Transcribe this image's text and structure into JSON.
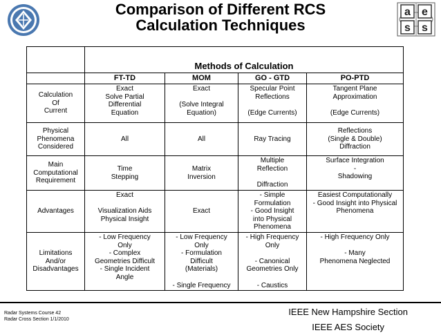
{
  "title_line1": "Comparison of Different RCS",
  "title_line2": "Calculation Techniques",
  "table": {
    "methods_header": "Methods of Calculation",
    "columns": [
      "FT-TD",
      "MOM",
      "GO - GTD",
      "PO-PTD"
    ],
    "rows": [
      {
        "label": "Calculation\nOf\nCurrent",
        "cells": [
          "Exact\nSolve Partial\nDifferential\nEquation",
          "Exact\n\n(Solve Integral\nEquation)",
          "Specular Point\nReflections\n\n(Edge Currents)",
          "Tangent Plane\nApproximation\n\n(Edge Currents)"
        ]
      },
      {
        "label": "Physical\nPhenomena\nConsidered",
        "cells": [
          "All",
          "All",
          "Ray Tracing",
          "Reflections\n(Single & Double)\nDiffraction"
        ]
      },
      {
        "label": "Main\nComputational\nRequirement",
        "cells": [
          "Time\nStepping",
          "Matrix\nInversion",
          "Multiple\nReflection\n\nDiffraction",
          "Surface Integration\n-\nShadowing"
        ]
      },
      {
        "label": "Advantages",
        "cells": [
          "Exact\n\nVisualization Aids\nPhysical Insight",
          "Exact",
          "- Simple\nFormulation\n- Good Insight\ninto Physical\nPhenomena",
          "Easiest Computationally\n- Good Insight into Physical\nPhenomena"
        ]
      },
      {
        "label": "Limitations\nAnd/or\nDisadvantages",
        "cells": [
          "- Low Frequency\nOnly\n- Complex\nGeometries Difficult\n- Single Incident\nAngle",
          "- Low Frequency\nOnly\n- Formulation\nDifficult\n(Materials)\n\n- Single Frequency",
          "- High Frequency\nOnly\n\n- Canonical\nGeometries Only\n\n- Caustics",
          "- High Frequency Only\n\n- Many\nPhenomena Neglected"
        ]
      }
    ]
  },
  "footer": {
    "course": "Radar Systems Course   42",
    "section": "Radar Cross Section  1/1/2010",
    "ieee_nh": "IEEE New Hampshire Section",
    "ieee_aes": "IEEE AES Society"
  },
  "logos": {
    "left_name": "ieee-logo",
    "right_name": "aess-logo",
    "right_letters": [
      "a",
      "e",
      "s",
      "s"
    ],
    "accent_blue": "#4a78b0"
  }
}
